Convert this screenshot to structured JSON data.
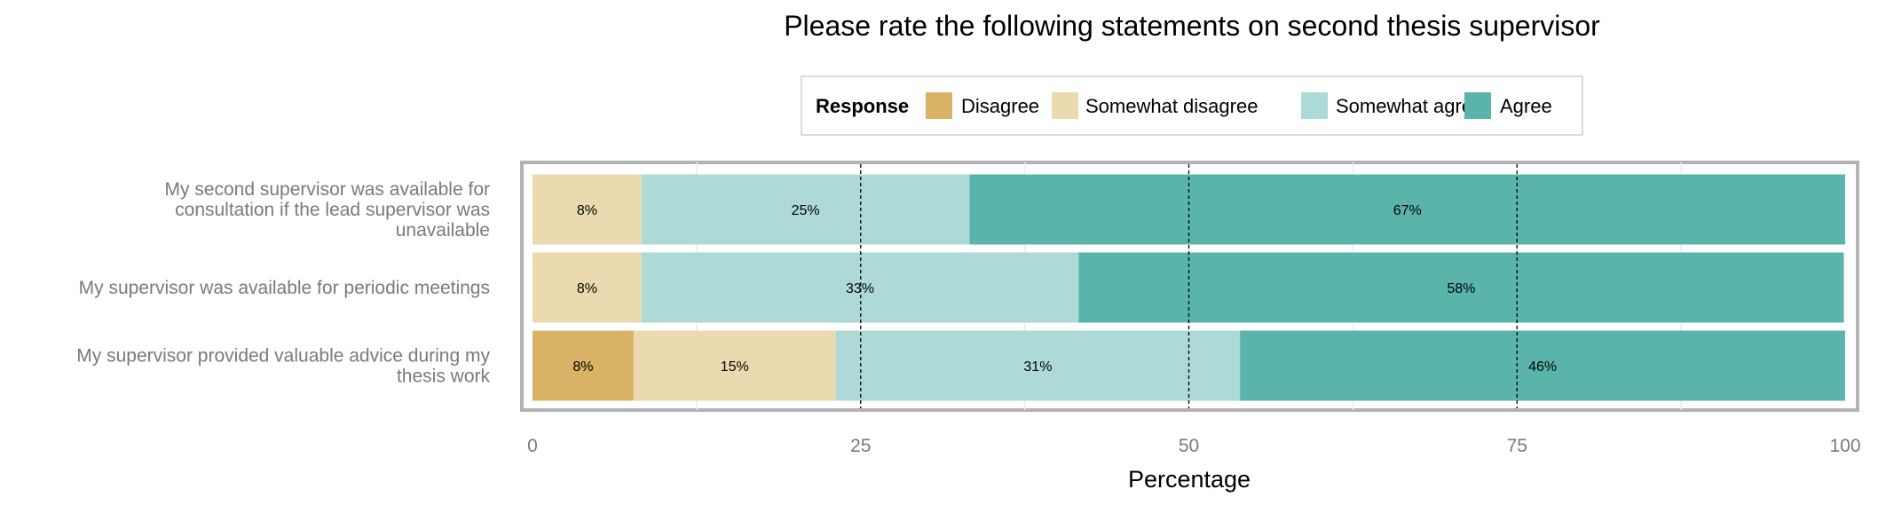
{
  "chart_data": {
    "type": "bar",
    "orientation": "horizontal",
    "stacked": true,
    "title": "Please rate the following statements on second thesis supervisor",
    "xlabel": "Percentage",
    "ylabel": "",
    "xlim": [
      0,
      100
    ],
    "xticks": [
      "0",
      "25",
      "50",
      "75",
      "100"
    ],
    "reference_lines": [
      25,
      50,
      75
    ],
    "legend": {
      "title": "Response",
      "position": "top",
      "entries": [
        "Disagree",
        "Somewhat disagree",
        "Somewhat agree",
        "Agree"
      ]
    },
    "categories": [
      "My second supervisor was available for consultation if the lead supervisor was unavailable",
      "My supervisor was available for periodic meetings",
      "My supervisor provided valuable advice during my thesis work"
    ],
    "category_lines": [
      [
        "My second supervisor was available for",
        "consultation if the lead supervisor was",
        "unavailable"
      ],
      [
        "My supervisor was available for periodic meetings"
      ],
      [
        "My supervisor provided valuable advice during my",
        "thesis work"
      ]
    ],
    "series": [
      {
        "name": "Disagree",
        "color": "#d8b365",
        "values": [
          0,
          0,
          7.7
        ],
        "labels": [
          "",
          "",
          "8%"
        ]
      },
      {
        "name": "Somewhat disagree",
        "color": "#ebdab0",
        "values": [
          8.3,
          8.3,
          15.4
        ],
        "labels": [
          "8%",
          "8%",
          "15%"
        ]
      },
      {
        "name": "Somewhat agree",
        "color": "#add9d6",
        "values": [
          25,
          33.3,
          30.8
        ],
        "labels": [
          "25%",
          "33%",
          "31%"
        ]
      },
      {
        "name": "Agree",
        "color": "#5ab4ac",
        "values": [
          66.7,
          58.3,
          46.1
        ],
        "labels": [
          "67%",
          "58%",
          "46%"
        ]
      }
    ]
  }
}
